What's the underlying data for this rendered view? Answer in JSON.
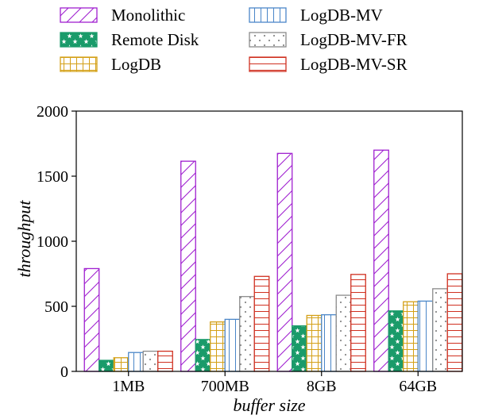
{
  "chart_data": {
    "type": "bar",
    "xlabel": "buffer size",
    "ylabel": "throughput",
    "ylim": [
      0,
      2000
    ],
    "yticks": [
      0,
      500,
      1000,
      1500,
      2000
    ],
    "categories": [
      "1MB",
      "700MB",
      "8GB",
      "64GB"
    ],
    "grid": false,
    "legend_position": "top",
    "series": [
      {
        "name": "Monolithic",
        "color": "#a020d0",
        "pattern": "diagonal-hatch",
        "values": [
          790,
          1615,
          1675,
          1700
        ]
      },
      {
        "name": "Remote Disk",
        "color": "#1a9b6a",
        "pattern": "stars",
        "values": [
          85,
          245,
          350,
          465
        ]
      },
      {
        "name": "LogDB",
        "color": "#d4a017",
        "pattern": "grid",
        "values": [
          105,
          380,
          430,
          535
        ]
      },
      {
        "name": "LogDB-MV",
        "color": "#4a86c8",
        "pattern": "vertical-lines",
        "values": [
          145,
          400,
          435,
          540
        ]
      },
      {
        "name": "LogDB-MV-FR",
        "color": "#8a8a8a",
        "pattern": "dots",
        "values": [
          155,
          575,
          585,
          635
        ]
      },
      {
        "name": "LogDB-MV-SR",
        "color": "#d03020",
        "pattern": "horizontal-lines",
        "values": [
          155,
          730,
          745,
          750
        ]
      }
    ]
  }
}
